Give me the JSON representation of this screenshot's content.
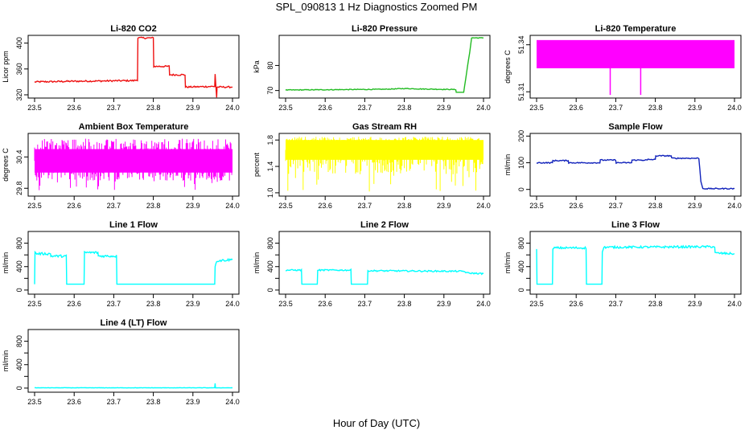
{
  "figure": {
    "title": "SPL_090813  1 Hz Diagnostics Zoomed PM",
    "xlabel": "Hour of Day (UTC)"
  },
  "chart_data": [
    {
      "type": "line",
      "title": "Li-820 CO2",
      "ylabel": "Licor ppm",
      "xlim": [
        23.5,
        24.0
      ],
      "ylim": [
        315,
        412
      ],
      "xticks": [
        "23.5",
        "23.6",
        "23.7",
        "23.8",
        "23.9",
        "24.0"
      ],
      "yticks": [
        320,
        360,
        400
      ],
      "ytick_labels": [
        "320",
        "360",
        "400"
      ],
      "color": "#ee1111",
      "noise": 1.2,
      "series": [
        {
          "x": [
            23.5,
            23.6,
            23.75,
            23.76,
            23.761,
            23.8,
            23.801,
            23.84,
            23.841,
            23.88,
            23.881,
            23.955,
            23.956,
            23.96,
            23.961,
            24.0
          ],
          "y": [
            340,
            341,
            342,
            343,
            408,
            408,
            364,
            364,
            351,
            351,
            332,
            333,
            352,
            316,
            332,
            332
          ]
        }
      ],
      "flat": [
        [
          23.5,
          23.76
        ],
        [
          23.76,
          23.8
        ],
        [
          23.8,
          23.84
        ],
        [
          23.84,
          23.88
        ],
        [
          23.88,
          23.955
        ],
        [
          23.961,
          24.0
        ]
      ]
    },
    {
      "type": "line",
      "title": "Li-820 Pressure",
      "ylabel": "kPa",
      "xlim": [
        23.5,
        24.0
      ],
      "ylim": [
        67,
        92
      ],
      "xticks": [
        "23.5",
        "23.6",
        "23.7",
        "23.8",
        "23.9",
        "24.0"
      ],
      "yticks": [
        70,
        80
      ],
      "ytick_labels": [
        "70",
        "80"
      ],
      "color": "#22bb22",
      "noise": 0.15,
      "series": [
        {
          "x": [
            23.5,
            23.75,
            23.8,
            23.85,
            23.93,
            23.931,
            23.95,
            23.96,
            23.965,
            23.97,
            24.0
          ],
          "y": [
            70.2,
            70.5,
            70.8,
            70.6,
            70.4,
            69.3,
            69.3,
            80,
            85,
            91,
            91
          ]
        }
      ],
      "flat": [
        [
          23.5,
          23.93
        ],
        [
          23.97,
          24.0
        ]
      ]
    },
    {
      "type": "line",
      "title": "Li-820 Temperature",
      "ylabel": "degrees C",
      "xlim": [
        23.5,
        24.0
      ],
      "ylim": [
        51.306,
        51.346
      ],
      "xticks": [
        "23.5",
        "23.6",
        "23.7",
        "23.8",
        "23.9",
        "24.0"
      ],
      "yticks": [
        51.31,
        51.34
      ],
      "ytick_labels": [
        "51.31",
        "51.34"
      ],
      "color": "#ff00ff",
      "band": [
        51.325,
        51.343
      ],
      "spikes": [
        [
          23.686,
          51.308
        ],
        [
          23.763,
          51.308
        ]
      ]
    },
    {
      "type": "line",
      "title": "Ambient Box Temperature",
      "ylabel": "degrees C",
      "xlim": [
        23.5,
        24.0
      ],
      "ylim": [
        29.65,
        30.85
      ],
      "xticks": [
        "23.5",
        "23.6",
        "23.7",
        "23.8",
        "23.9",
        "24.0"
      ],
      "yticks": [
        29.8,
        30.4
      ],
      "ytick_labels": [
        "29.8",
        "30.4"
      ],
      "color": "#ff00ff",
      "band": [
        30.1,
        30.55
      ],
      "noise_band": [
        29.75,
        30.75
      ]
    },
    {
      "type": "line",
      "title": "Gas Stream RH",
      "ylabel": "percent",
      "xlim": [
        23.5,
        24.0
      ],
      "ylim": [
        0.95,
        1.9
      ],
      "xticks": [
        "23.5",
        "23.6",
        "23.7",
        "23.8",
        "23.9",
        "24.0"
      ],
      "yticks": [
        1.0,
        1.4,
        1.8
      ],
      "ytick_labels": [
        "1.0",
        "1.4",
        "1.8"
      ],
      "color": "#ffff00",
      "band": [
        1.5,
        1.8
      ],
      "noise_band": [
        1.0,
        1.85
      ]
    },
    {
      "type": "line",
      "title": "Sample Flow",
      "ylabel": "ml/min",
      "xlim": [
        23.5,
        24.0
      ],
      "ylim": [
        -25,
        210
      ],
      "xticks": [
        "23.5",
        "23.6",
        "23.7",
        "23.8",
        "23.9",
        "24.0"
      ],
      "yticks": [
        0,
        100,
        200
      ],
      "ytick_labels": [
        "0",
        "100",
        "200"
      ],
      "color": "#1122bb",
      "noise": 2,
      "series": [
        {
          "x": [
            23.5,
            23.54,
            23.541,
            23.58,
            23.581,
            23.66,
            23.661,
            23.7,
            23.701,
            23.74,
            23.741,
            23.78,
            23.781,
            23.8,
            23.801,
            23.84,
            23.841,
            23.91,
            23.915,
            23.92,
            24.0
          ],
          "y": [
            100,
            100,
            108,
            108,
            100,
            100,
            110,
            110,
            100,
            100,
            110,
            110,
            112,
            112,
            126,
            126,
            117,
            117,
            30,
            3,
            3
          ]
        }
      ],
      "flat": [
        [
          23.5,
          23.91
        ],
        [
          23.92,
          24.0
        ]
      ]
    },
    {
      "type": "line",
      "title": "Line 1 Flow",
      "ylabel": "ml/min",
      "xlim": [
        23.5,
        24.0
      ],
      "ylim": [
        -70,
        1000
      ],
      "xticks": [
        "23.5",
        "23.6",
        "23.7",
        "23.8",
        "23.9",
        "24.0"
      ],
      "yticks": [
        0,
        200,
        400,
        600,
        800
      ],
      "ytick_labels": [
        "0",
        "400",
        "800"
      ],
      "color": "#00ffff",
      "noise": 20,
      "series": [
        {
          "x": [
            23.5,
            23.501,
            23.505,
            23.54,
            23.541,
            23.58,
            23.581,
            23.625,
            23.626,
            23.66,
            23.661,
            23.707,
            23.708,
            23.955,
            23.956,
            23.96,
            24.0
          ],
          "y": [
            100,
            650,
            620,
            620,
            580,
            580,
            100,
            100,
            640,
            640,
            580,
            580,
            100,
            100,
            400,
            500,
            520
          ]
        }
      ],
      "flat": [
        [
          23.505,
          23.58
        ],
        [
          23.626,
          23.707
        ],
        [
          23.96,
          24.0
        ]
      ]
    },
    {
      "type": "line",
      "title": "Line 2 Flow",
      "ylabel": "ml/min",
      "xlim": [
        23.5,
        24.0
      ],
      "ylim": [
        -70,
        1000
      ],
      "xticks": [
        "23.5",
        "23.6",
        "23.7",
        "23.8",
        "23.9",
        "24.0"
      ],
      "yticks": [
        0,
        200,
        400,
        600,
        800
      ],
      "ytick_labels": [
        "0",
        "400",
        "800"
      ],
      "color": "#00ffff",
      "noise": 12,
      "series": [
        {
          "x": [
            23.5,
            23.54,
            23.541,
            23.58,
            23.581,
            23.665,
            23.666,
            23.707,
            23.708,
            23.95,
            23.96,
            24.0
          ],
          "y": [
            340,
            340,
            100,
            100,
            340,
            340,
            100,
            100,
            330,
            320,
            290,
            280
          ]
        }
      ],
      "flat": [
        [
          23.5,
          23.54
        ],
        [
          23.581,
          23.665
        ],
        [
          23.708,
          24.0
        ]
      ]
    },
    {
      "type": "line",
      "title": "Line 3 Flow",
      "ylabel": "ml/min",
      "xlim": [
        23.5,
        24.0
      ],
      "ylim": [
        -70,
        1000
      ],
      "xticks": [
        "23.5",
        "23.6",
        "23.7",
        "23.8",
        "23.9",
        "24.0"
      ],
      "yticks": [
        0,
        200,
        400,
        600,
        800
      ],
      "ytick_labels": [
        "0",
        "400",
        "800"
      ],
      "color": "#00ffff",
      "noise": 18,
      "series": [
        {
          "x": [
            23.5,
            23.501,
            23.505,
            23.54,
            23.541,
            23.545,
            23.625,
            23.626,
            23.665,
            23.666,
            23.67,
            23.95,
            23.951,
            24.0
          ],
          "y": [
            700,
            100,
            100,
            100,
            700,
            720,
            720,
            100,
            100,
            650,
            730,
            740,
            630,
            620
          ]
        }
      ],
      "flat": [
        [
          23.545,
          23.625
        ],
        [
          23.67,
          23.95
        ],
        [
          23.951,
          24.0
        ]
      ]
    },
    {
      "type": "line",
      "title": "Line 4 (LT) Flow",
      "ylabel": "ml/min",
      "xlim": [
        23.5,
        24.0
      ],
      "ylim": [
        -70,
        1000
      ],
      "xticks": [
        "23.5",
        "23.6",
        "23.7",
        "23.8",
        "23.9",
        "24.0"
      ],
      "yticks": [
        0,
        200,
        400,
        600,
        800
      ],
      "ytick_labels": [
        "0",
        "400",
        "800"
      ],
      "color": "#00ffff",
      "noise": 3,
      "series": [
        {
          "x": [
            23.5,
            23.955,
            23.956,
            23.957,
            23.958,
            24.0
          ],
          "y": [
            5,
            5,
            80,
            5,
            5,
            5
          ]
        }
      ],
      "flat": [
        [
          23.5,
          23.955
        ],
        [
          23.958,
          24.0
        ]
      ]
    }
  ]
}
